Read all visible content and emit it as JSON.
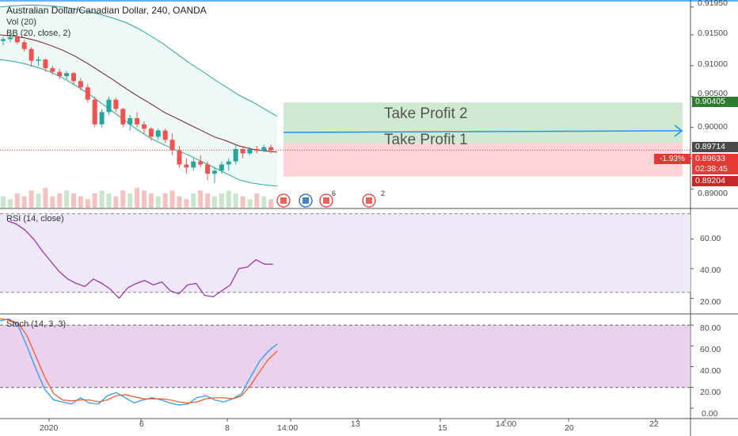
{
  "header": {
    "symbol_line": "Australian Dollar/Canadian Dollar, 240, OANDA",
    "vol_label": "Vol (20)",
    "bb_label": "BB (20, close, 2)"
  },
  "price_axis": {
    "ticks": [
      "0.91950",
      "0.91500",
      "0.91000",
      "0.90500",
      "0.90000",
      "0.89500",
      "0.89000"
    ],
    "tp_level": "0.90405",
    "last_price": "0.89714",
    "current_price": "0.89633",
    "change_pct": "-1.93%",
    "countdown": "02:38:45",
    "sl_level": "0.89204"
  },
  "annotations": {
    "tp2": "Take Profit 2",
    "tp1": "Take Profit 1"
  },
  "event_badges": [
    "6",
    "2"
  ],
  "rsi": {
    "label": "RSI (14, close)",
    "ticks": [
      "60.00",
      "40.00",
      "20.00"
    ]
  },
  "stoch": {
    "label": "Stoch (14, 3, 3)",
    "ticks": [
      "80.00",
      "60.00",
      "40.00",
      "20.00",
      "0.00"
    ]
  },
  "time_axis": [
    "2020",
    "6",
    "8",
    "14:00",
    "13",
    "15",
    "14:00",
    "20",
    "22"
  ],
  "colors": {
    "up": "#26a69a",
    "down": "#ef5350",
    "bb": "#26a69a",
    "basis": "#7b1f1f",
    "rsi_line": "#9c27b0",
    "stoch_k": "#2196f3",
    "stoch_d": "#f4511e",
    "tp_zone": "#c8e6c9",
    "sl_zone": "#ffcdd2"
  },
  "chart_data": {
    "type": "candlestick",
    "title": "Australian Dollar/Canadian Dollar, 240, OANDA",
    "y_range": [
      0.887,
      0.92
    ],
    "candles": [
      {
        "o": 0.914,
        "h": 0.9147,
        "l": 0.9133,
        "c": 0.9143
      },
      {
        "o": 0.9143,
        "h": 0.9152,
        "l": 0.9138,
        "c": 0.9146
      },
      {
        "o": 0.9146,
        "h": 0.915,
        "l": 0.9135,
        "c": 0.9138
      },
      {
        "o": 0.9138,
        "h": 0.9142,
        "l": 0.9123,
        "c": 0.9127
      },
      {
        "o": 0.9127,
        "h": 0.913,
        "l": 0.9098,
        "c": 0.9108
      },
      {
        "o": 0.9108,
        "h": 0.9115,
        "l": 0.91,
        "c": 0.911
      },
      {
        "o": 0.911,
        "h": 0.9112,
        "l": 0.909,
        "c": 0.9096
      },
      {
        "o": 0.9096,
        "h": 0.91,
        "l": 0.9085,
        "c": 0.909
      },
      {
        "o": 0.909,
        "h": 0.9095,
        "l": 0.9078,
        "c": 0.9083
      },
      {
        "o": 0.9083,
        "h": 0.9092,
        "l": 0.9078,
        "c": 0.9088
      },
      {
        "o": 0.9088,
        "h": 0.909,
        "l": 0.907,
        "c": 0.9075
      },
      {
        "o": 0.9075,
        "h": 0.908,
        "l": 0.906,
        "c": 0.9065
      },
      {
        "o": 0.9065,
        "h": 0.907,
        "l": 0.904,
        "c": 0.9045
      },
      {
        "o": 0.9045,
        "h": 0.905,
        "l": 0.9,
        "c": 0.9005
      },
      {
        "o": 0.9005,
        "h": 0.903,
        "l": 0.9,
        "c": 0.9025
      },
      {
        "o": 0.9025,
        "h": 0.905,
        "l": 0.902,
        "c": 0.9045
      },
      {
        "o": 0.9045,
        "h": 0.9048,
        "l": 0.9025,
        "c": 0.903
      },
      {
        "o": 0.903,
        "h": 0.9032,
        "l": 0.9,
        "c": 0.9005
      },
      {
        "o": 0.9005,
        "h": 0.902,
        "l": 0.8995,
        "c": 0.9015
      },
      {
        "o": 0.9015,
        "h": 0.9025,
        "l": 0.9,
        "c": 0.9005
      },
      {
        "o": 0.9005,
        "h": 0.901,
        "l": 0.899,
        "c": 0.8998
      },
      {
        "o": 0.8998,
        "h": 0.9,
        "l": 0.8978,
        "c": 0.8985
      },
      {
        "o": 0.8985,
        "h": 0.8998,
        "l": 0.898,
        "c": 0.8995
      },
      {
        "o": 0.8995,
        "h": 0.8998,
        "l": 0.8975,
        "c": 0.898
      },
      {
        "o": 0.898,
        "h": 0.899,
        "l": 0.8955,
        "c": 0.8963
      },
      {
        "o": 0.8963,
        "h": 0.897,
        "l": 0.8935,
        "c": 0.894
      },
      {
        "o": 0.894,
        "h": 0.895,
        "l": 0.8925,
        "c": 0.8935
      },
      {
        "o": 0.8935,
        "h": 0.895,
        "l": 0.893,
        "c": 0.8945
      },
      {
        "o": 0.8945,
        "h": 0.8955,
        "l": 0.8935,
        "c": 0.894
      },
      {
        "o": 0.894,
        "h": 0.8945,
        "l": 0.8915,
        "c": 0.8925
      },
      {
        "o": 0.8925,
        "h": 0.8935,
        "l": 0.891,
        "c": 0.893
      },
      {
        "o": 0.893,
        "h": 0.8945,
        "l": 0.8925,
        "c": 0.894
      },
      {
        "o": 0.894,
        "h": 0.895,
        "l": 0.893,
        "c": 0.8945
      },
      {
        "o": 0.8945,
        "h": 0.8972,
        "l": 0.894,
        "c": 0.8965
      },
      {
        "o": 0.8965,
        "h": 0.897,
        "l": 0.895,
        "c": 0.8958
      },
      {
        "o": 0.8958,
        "h": 0.8968,
        "l": 0.8955,
        "c": 0.8965
      },
      {
        "o": 0.8965,
        "h": 0.897,
        "l": 0.8958,
        "c": 0.8962
      },
      {
        "o": 0.8962,
        "h": 0.8972,
        "l": 0.896,
        "c": 0.8968
      },
      {
        "o": 0.8968,
        "h": 0.8972,
        "l": 0.8958,
        "c": 0.8963
      }
    ],
    "bb_upper": [
      0.9195,
      0.9197,
      0.9198,
      0.9198,
      0.9197,
      0.9195,
      0.9192,
      0.9188,
      0.9183,
      0.9177,
      0.917,
      0.916,
      0.9148,
      0.9135,
      0.912,
      0.9105,
      0.9092,
      0.9078,
      0.9065,
      0.9052,
      0.9042,
      0.903,
      0.9018
    ],
    "bb_lower": [
      0.911,
      0.9107,
      0.9103,
      0.9097,
      0.909,
      0.908,
      0.9068,
      0.9055,
      0.904,
      0.9025,
      0.901,
      0.8995,
      0.8982,
      0.8972,
      0.8963,
      0.8955,
      0.8945,
      0.8935,
      0.8925,
      0.8915,
      0.891,
      0.8907,
      0.8905
    ],
    "bb_basis": [
      0.915,
      0.9148,
      0.9145,
      0.914,
      0.9133,
      0.9125,
      0.9115,
      0.9103,
      0.909,
      0.9077,
      0.9063,
      0.905,
      0.9038,
      0.9025,
      0.9015,
      0.9005,
      0.8995,
      0.8985,
      0.8978,
      0.897,
      0.8965,
      0.8962,
      0.896
    ],
    "volume": [
      4,
      3,
      5,
      4,
      6,
      5,
      7,
      4,
      5,
      6,
      5,
      4,
      3,
      5,
      6,
      5,
      4,
      6,
      5,
      7,
      6,
      5,
      4,
      5,
      6,
      4,
      3,
      5,
      6,
      5,
      4,
      5,
      6,
      5,
      4,
      3,
      5,
      4,
      3
    ],
    "tp_zone": [
      0.8975,
      0.90405
    ],
    "sl_zone": [
      0.89204,
      0.8975
    ],
    "rsi": [
      72,
      70,
      66,
      60,
      52,
      45,
      38,
      33,
      30,
      28,
      33,
      30,
      26,
      20,
      27,
      30,
      32,
      29,
      31,
      25,
      23,
      29,
      30,
      22,
      21,
      25,
      29,
      40,
      41,
      46,
      43,
      43
    ],
    "rsi_range": [
      10,
      80
    ],
    "stoch_k": [
      84,
      86,
      80,
      60,
      38,
      18,
      8,
      6,
      4,
      10,
      5,
      4,
      12,
      15,
      10,
      5,
      8,
      10,
      8,
      5,
      3,
      4,
      10,
      12,
      8,
      6,
      9,
      14,
      30,
      45,
      55,
      62
    ],
    "stoch_d": [
      86,
      85,
      82,
      70,
      50,
      30,
      14,
      8,
      7,
      8,
      8,
      6,
      8,
      12,
      13,
      11,
      9,
      9,
      9,
      8,
      6,
      5,
      6,
      9,
      10,
      10,
      9,
      12,
      22,
      35,
      47,
      55
    ],
    "stoch_range": [
      -10,
      90
    ]
  }
}
